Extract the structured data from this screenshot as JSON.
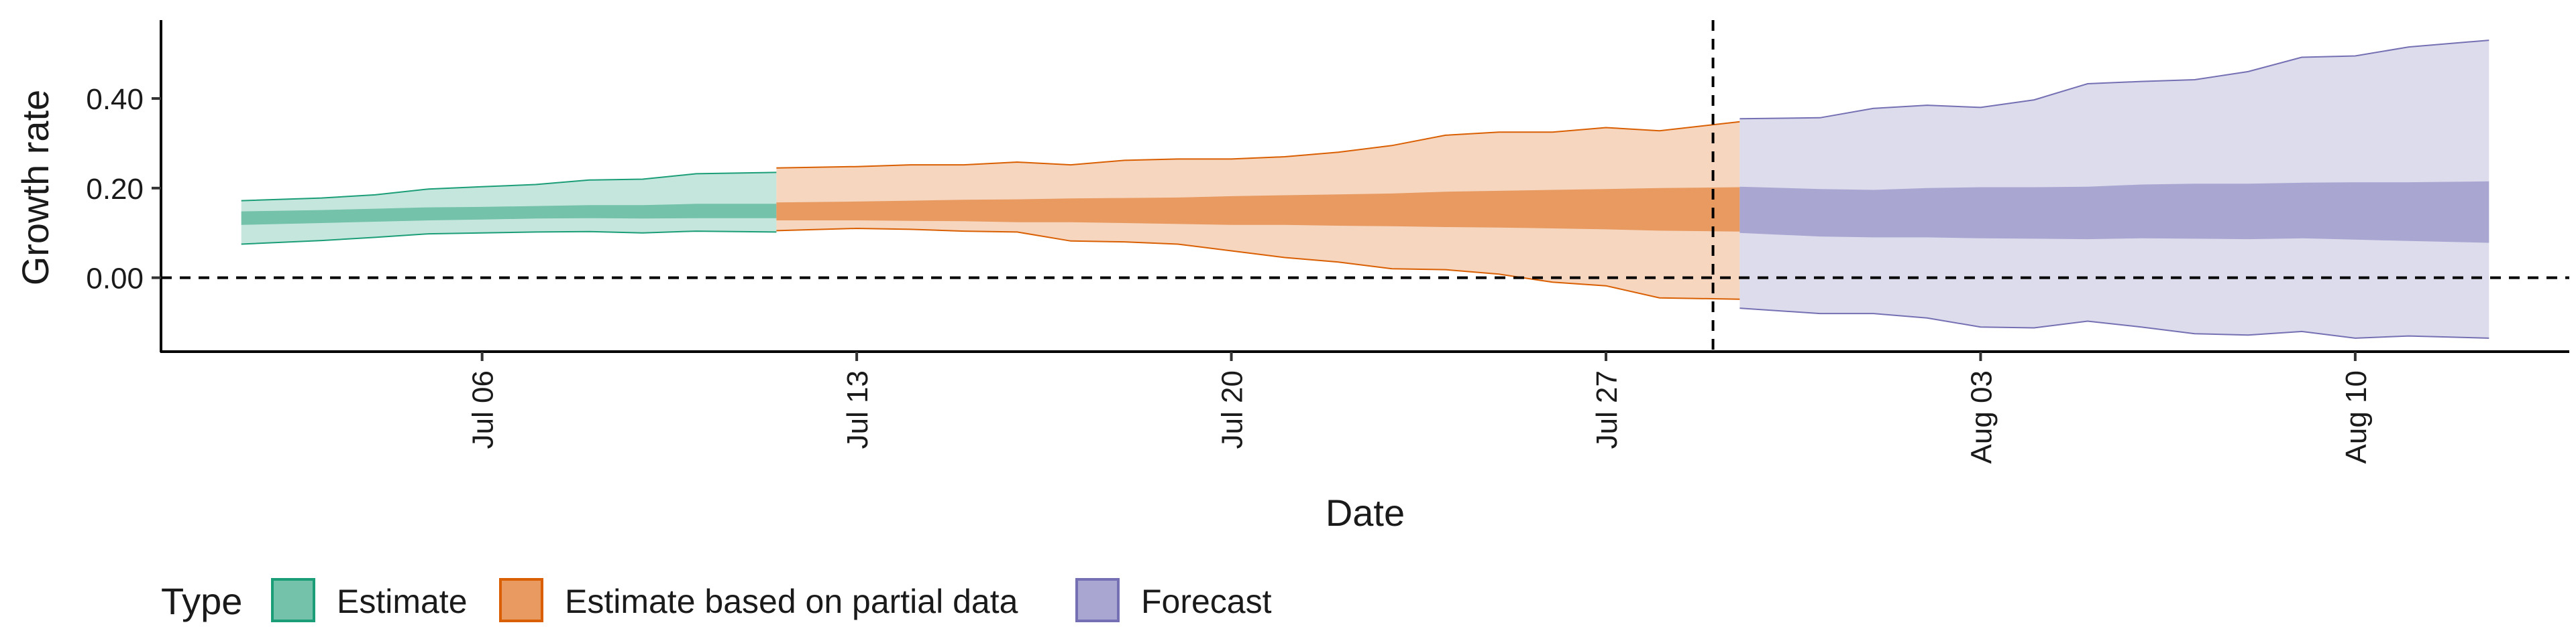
{
  "chart_data": {
    "type": "area",
    "xlabel": "Date",
    "ylabel": "Growth rate",
    "x_ticks": [
      "2020-07-06",
      "2020-07-13",
      "2020-07-20",
      "2020-07-27",
      "2020-08-03",
      "2020-08-10"
    ],
    "x_tick_labels": [
      "Jul 06",
      "Jul 13",
      "Jul 20",
      "Jul 27",
      "Aug 03",
      "Aug 10"
    ],
    "y_ticks": [
      0,
      0.2,
      0.4
    ],
    "y_tick_labels": [
      "0.00",
      "0.20",
      "0.40"
    ],
    "ylim": [
      -0.165,
      0.575
    ],
    "xlim": [
      "2020-06-30",
      "2020-08-14"
    ],
    "reference_lines": {
      "horizontal_y": 0,
      "vertical_x": "2020-07-29"
    },
    "grid": false,
    "legend": {
      "title": "Type",
      "position": "bottom-left",
      "entries": [
        "Estimate",
        "Estimate based on partial data",
        "Forecast"
      ]
    },
    "colors": {
      "Estimate": {
        "outer": "#c5e6dc",
        "inner": "#73c2a9",
        "line": "#1b9e77"
      },
      "Estimate based on partial data": {
        "outer": "#f6d6bf",
        "inner": "#e89a60",
        "line": "#d95f02"
      },
      "Forecast": {
        "outer": "#dcdcec",
        "inner": "#a9a6d2",
        "line": "#7570b3"
      }
    },
    "series": [
      {
        "name": "Estimate",
        "x": [
          "2020-07-02",
          "2020-07-03",
          "2020-07-04",
          "2020-07-05",
          "2020-07-06",
          "2020-07-07",
          "2020-07-08",
          "2020-07-09",
          "2020-07-10",
          "2020-07-11"
        ],
        "outer_lower": [
          0.075,
          0.083,
          0.09,
          0.098,
          0.1,
          0.102,
          0.103,
          0.1,
          0.104,
          0.102
        ],
        "outer_upper": [
          0.172,
          0.178,
          0.185,
          0.198,
          0.203,
          0.208,
          0.218,
          0.22,
          0.232,
          0.235
        ],
        "inner_lower": [
          0.118,
          0.122,
          0.125,
          0.128,
          0.13,
          0.132,
          0.133,
          0.132,
          0.133,
          0.133
        ],
        "inner_upper": [
          0.148,
          0.151,
          0.154,
          0.157,
          0.158,
          0.16,
          0.162,
          0.162,
          0.165,
          0.165
        ]
      },
      {
        "name": "Estimate based on partial data",
        "x": [
          "2020-07-12",
          "2020-07-13",
          "2020-07-14",
          "2020-07-15",
          "2020-07-16",
          "2020-07-17",
          "2020-07-18",
          "2020-07-19",
          "2020-07-20",
          "2020-07-21",
          "2020-07-22",
          "2020-07-23",
          "2020-07-24",
          "2020-07-25",
          "2020-07-26",
          "2020-07-27",
          "2020-07-28",
          "2020-07-29"
        ],
        "outer_lower": [
          0.105,
          0.11,
          0.108,
          0.104,
          0.102,
          0.082,
          0.08,
          0.075,
          0.06,
          0.045,
          0.035,
          0.02,
          0.018,
          0.008,
          -0.01,
          -0.018,
          -0.045,
          -0.048
        ],
        "outer_upper": [
          0.245,
          0.248,
          0.252,
          0.252,
          0.258,
          0.252,
          0.262,
          0.265,
          0.265,
          0.27,
          0.28,
          0.295,
          0.318,
          0.325,
          0.325,
          0.335,
          0.328,
          0.348
        ],
        "inner_lower": [
          0.128,
          0.128,
          0.127,
          0.126,
          0.124,
          0.124,
          0.122,
          0.12,
          0.118,
          0.118,
          0.116,
          0.115,
          0.113,
          0.112,
          0.11,
          0.108,
          0.105,
          0.103
        ],
        "inner_upper": [
          0.168,
          0.17,
          0.172,
          0.174,
          0.175,
          0.177,
          0.178,
          0.179,
          0.182,
          0.184,
          0.186,
          0.188,
          0.192,
          0.194,
          0.196,
          0.198,
          0.2,
          0.202
        ]
      },
      {
        "name": "Forecast",
        "x": [
          "2020-07-30",
          "2020-07-31",
          "2020-08-01",
          "2020-08-02",
          "2020-08-03",
          "2020-08-04",
          "2020-08-05",
          "2020-08-06",
          "2020-08-07",
          "2020-08-08",
          "2020-08-09",
          "2020-08-10",
          "2020-08-11",
          "2020-08-12"
        ],
        "outer_lower": [
          -0.068,
          -0.08,
          -0.08,
          -0.09,
          -0.11,
          -0.112,
          -0.097,
          -0.11,
          -0.125,
          -0.128,
          -0.12,
          -0.135,
          -0.13,
          -0.135
        ],
        "outer_upper": [
          0.355,
          0.357,
          0.378,
          0.385,
          0.38,
          0.397,
          0.433,
          0.438,
          0.442,
          0.46,
          0.492,
          0.495,
          0.515,
          0.53
        ],
        "inner_lower": [
          0.1,
          0.092,
          0.09,
          0.09,
          0.088,
          0.087,
          0.086,
          0.088,
          0.087,
          0.086,
          0.088,
          0.085,
          0.082,
          0.078
        ],
        "inner_upper": [
          0.203,
          0.198,
          0.196,
          0.2,
          0.202,
          0.202,
          0.203,
          0.208,
          0.21,
          0.21,
          0.212,
          0.213,
          0.213,
          0.215
        ]
      }
    ]
  }
}
